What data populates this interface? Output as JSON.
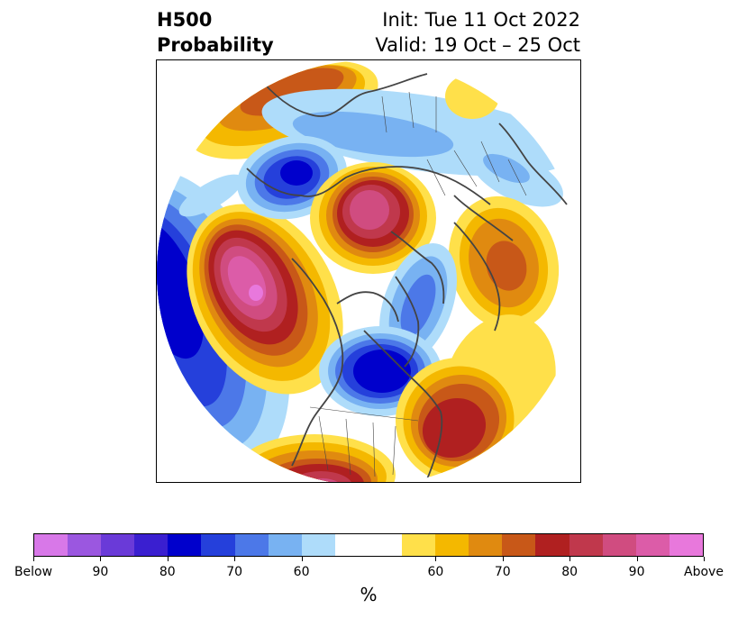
{
  "title": {
    "left_line1": "H500",
    "left_line2": "Probability",
    "right_line1": "Init: Tue 11 Oct 2022",
    "right_line2": "Valid: 19 Oct – 25 Oct"
  },
  "map": {
    "projection": "polar-stereographic",
    "background": "#ffffff",
    "coastline_color": "#444444"
  },
  "colorbar": {
    "colors": [
      "#d878e8",
      "#9b57e0",
      "#6a3ad8",
      "#3a1fd0",
      "#0000cc",
      "#2540db",
      "#4c78e8",
      "#78b2f2",
      "#aedcfa",
      "#ffffff",
      "#ffe04a",
      "#f4b800",
      "#e08a10",
      "#c85818",
      "#b02020",
      "#c0384c",
      "#d04c80",
      "#dc5ca8",
      "#e878dc"
    ],
    "tick_labels": [
      "Below",
      "90",
      "80",
      "70",
      "60",
      "60",
      "70",
      "80",
      "90",
      "Above"
    ],
    "unit_label": "%"
  }
}
